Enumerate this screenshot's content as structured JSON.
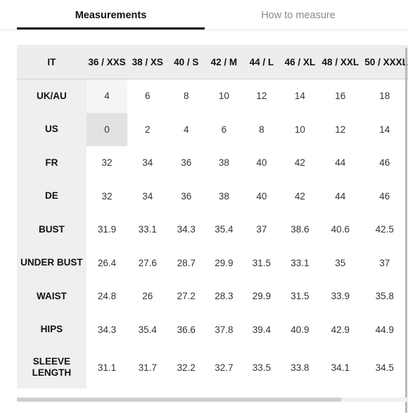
{
  "tabs": [
    {
      "label": "Measurements",
      "active": true
    },
    {
      "label": "How to measure",
      "active": false
    }
  ],
  "table": {
    "corner": "IT",
    "columns": [
      "36 / XXS",
      "38 / XS",
      "40 / S",
      "42 / M",
      "44 / L",
      "46 / XL",
      "48 / XXL",
      "50 / XXXL"
    ],
    "rows": [
      {
        "label": "UK/AU",
        "values": [
          "4",
          "6",
          "8",
          "10",
          "12",
          "14",
          "16",
          "18"
        ]
      },
      {
        "label": "US",
        "values": [
          "0",
          "2",
          "4",
          "6",
          "8",
          "10",
          "12",
          "14"
        ]
      },
      {
        "label": "FR",
        "values": [
          "32",
          "34",
          "36",
          "38",
          "40",
          "42",
          "44",
          "46"
        ]
      },
      {
        "label": "DE",
        "values": [
          "32",
          "34",
          "36",
          "38",
          "40",
          "42",
          "44",
          "46"
        ]
      },
      {
        "label": "BUST",
        "values": [
          "31.9",
          "33.1",
          "34.3",
          "35.4",
          "37",
          "38.6",
          "40.6",
          "42.5"
        ]
      },
      {
        "label": "UNDER BUST",
        "values": [
          "26.4",
          "27.6",
          "28.7",
          "29.9",
          "31.5",
          "33.1",
          "35",
          "37"
        ]
      },
      {
        "label": "WAIST",
        "values": [
          "24.8",
          "26",
          "27.2",
          "28.3",
          "29.9",
          "31.5",
          "33.9",
          "35.8"
        ]
      },
      {
        "label": "HIPS",
        "values": [
          "34.3",
          "35.4",
          "36.6",
          "37.8",
          "39.4",
          "40.9",
          "42.9",
          "44.9"
        ]
      },
      {
        "label": "SLEEVE\nLENGTH",
        "values": [
          "31.1",
          "31.7",
          "32.2",
          "32.7",
          "33.5",
          "33.8",
          "34.1",
          "34.5"
        ]
      }
    ]
  },
  "colors": {
    "header_bg": "#ededed",
    "row_header_bg": "#efefef",
    "selected_column_bg": "#f5f5f5",
    "selected_cell_bg": "#e2e2e2",
    "tab_active_text": "#111111",
    "tab_inactive_text": "#8a8a8a"
  },
  "selection": {
    "column": "36 / XXS",
    "row": "US"
  }
}
